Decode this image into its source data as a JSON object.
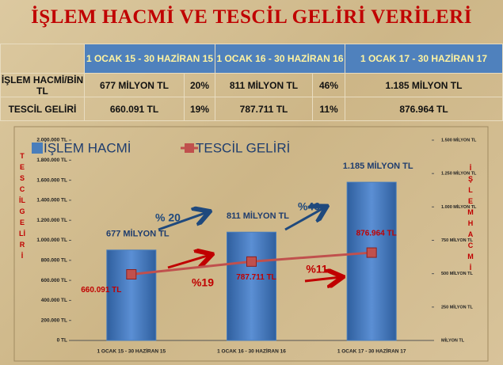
{
  "title": "İŞLEM HACMİ VE TESCİL GELİRİ VERİLERİ",
  "table": {
    "header": [
      "1 OCAK 15 - 30 HAZİRAN 15",
      "1 OCAK 16 - 30 HAZİRAN 16",
      "1 OCAK 17 - 30 HAZİRAN 17"
    ],
    "rows": [
      [
        "İŞLEM HACMİ/BİN TL",
        "677 MİLYON TL",
        "20%",
        "811 MİLYON TL",
        "46%",
        "1.185 MİLYON TL"
      ],
      [
        "TESCİL GELİRİ",
        "660.091 TL",
        "19%",
        "787.711 TL",
        "11%",
        "876.964 TL"
      ]
    ]
  },
  "chart_data": {
    "type": "bar",
    "ylabel": "TESCİL GELİRİ",
    "y2label": "İŞLEM HACMİ",
    "categories": [
      "1 OCAK 15 - 30 HAZİRAN 15",
      "1 OCAK 16 - 30 HAZİRAN 16",
      "1 OCAK 17 - 30 HAZİRAN 17"
    ],
    "series": [
      {
        "name": "İŞLEM HACMİ",
        "type": "bar",
        "axis": "y2",
        "color": "#4a7ebb",
        "values": [
          677,
          811,
          1185
        ],
        "value_labels": [
          "677 MİLYON TL",
          "811 MİLYON TL",
          "1.185 MİLYON TL"
        ]
      },
      {
        "name": "TESCİL GELİRİ",
        "type": "line",
        "color": "#c0504d",
        "values": [
          660091,
          787711,
          876964
        ],
        "value_labels": [
          "660.091 TL",
          "787.711 TL",
          "876.964 TL"
        ]
      }
    ],
    "ylim": [
      0,
      2000000
    ],
    "yticks": [
      {
        "value": 0,
        "label": "0 TL"
      },
      {
        "value": 200000,
        "label": "200.000 TL"
      },
      {
        "value": 400000,
        "label": "400.000 TL"
      },
      {
        "value": 600000,
        "label": "600.000 TL"
      },
      {
        "value": 800000,
        "label": "800.000 TL"
      },
      {
        "value": 1000000,
        "label": "1.000.000 TL"
      },
      {
        "value": 1200000,
        "label": "1.200.000 TL"
      },
      {
        "value": 1400000,
        "label": "1.400.000 TL"
      },
      {
        "value": 1600000,
        "label": "1.600.000 TL"
      },
      {
        "value": 1800000,
        "label": "1.800.000 TL"
      },
      {
        "value": 2000000,
        "label": "2.000.000 TL"
      }
    ],
    "y2lim": [
      0,
      1500
    ],
    "y2ticks": [
      {
        "value": 0,
        "label": "MİLYON TL"
      },
      {
        "value": 250,
        "label": "250 MİLYON TL"
      },
      {
        "value": 500,
        "label": "500 MİLYON TL"
      },
      {
        "value": 750,
        "label": "750 MİLYON TL"
      },
      {
        "value": 1000,
        "label": "1.000 MİLYON TL"
      },
      {
        "value": 1250,
        "label": "1.250 MİLYON TL"
      },
      {
        "value": 1500,
        "label": "1.500 MİLYON TL"
      }
    ],
    "annotations": [
      "% 20",
      "%46",
      "%19",
      "%11"
    ]
  }
}
